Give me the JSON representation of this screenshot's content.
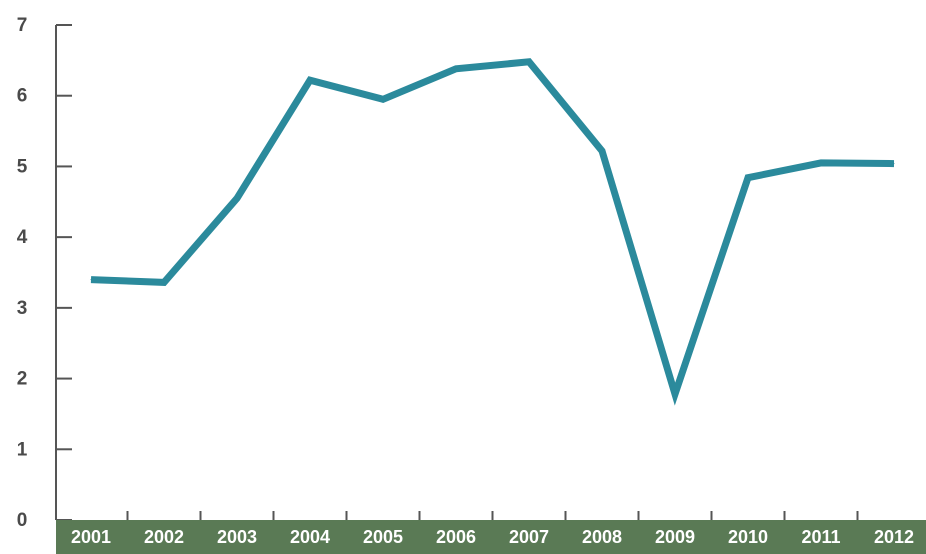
{
  "chart_data": {
    "type": "line",
    "categories": [
      "2001",
      "2002",
      "2003",
      "2004",
      "2005",
      "2006",
      "2007",
      "2008",
      "2009",
      "2010",
      "2011",
      "2012"
    ],
    "series": [
      {
        "values": [
          3.4,
          3.36,
          4.55,
          6.22,
          5.95,
          6.38,
          6.48,
          5.22,
          1.78,
          4.84,
          5.05,
          5.04
        ]
      }
    ],
    "ylim": [
      0,
      7
    ],
    "yticks": [
      0,
      1,
      2,
      3,
      4,
      5,
      6,
      7
    ],
    "line_color": "#2b8a9c",
    "axis_band_color": "#5a7a55",
    "grid": false
  }
}
